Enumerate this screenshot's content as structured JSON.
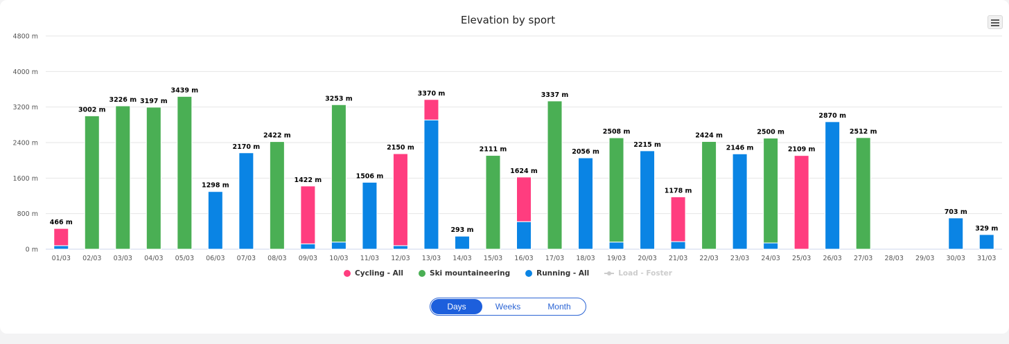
{
  "chart_data": {
    "type": "bar",
    "stacked": true,
    "title": "Elevation by sport",
    "y_unit": "m",
    "ylim": [
      0,
      4800
    ],
    "y_ticks": [
      0,
      800,
      1600,
      2400,
      3200,
      4000,
      4800
    ],
    "y_tick_labels": [
      "0 m",
      "800 m",
      "1600 m",
      "2400 m",
      "3200 m",
      "4000 m",
      "4800 m"
    ],
    "grid": true,
    "legend_position": "bottom-center",
    "categories": [
      "01/03",
      "02/03",
      "03/03",
      "04/03",
      "05/03",
      "06/03",
      "07/03",
      "08/03",
      "09/03",
      "10/03",
      "11/03",
      "12/03",
      "13/03",
      "14/03",
      "15/03",
      "16/03",
      "17/03",
      "18/03",
      "19/03",
      "20/03",
      "21/03",
      "22/03",
      "23/03",
      "24/03",
      "25/03",
      "26/03",
      "27/03",
      "28/03",
      "29/03",
      "30/03",
      "31/03"
    ],
    "series": [
      {
        "name": "Running - All",
        "color": "#0a84e4",
        "values": [
          80,
          0,
          0,
          0,
          0,
          1298,
          2170,
          0,
          120,
          160,
          1506,
          80,
          2910,
          293,
          0,
          620,
          0,
          2056,
          160,
          2215,
          170,
          0,
          2146,
          140,
          0,
          2870,
          0,
          0,
          0,
          703,
          329
        ]
      },
      {
        "name": "Ski mountaineering",
        "color": "#4aaf54",
        "values": [
          0,
          3002,
          3226,
          3197,
          3439,
          0,
          0,
          2422,
          0,
          3093,
          0,
          0,
          0,
          0,
          2111,
          0,
          3337,
          0,
          2348,
          0,
          0,
          2424,
          0,
          2360,
          0,
          0,
          2512,
          0,
          0,
          0,
          0
        ]
      },
      {
        "name": "Cycling - All",
        "color": "#ff3d7f",
        "values": [
          386,
          0,
          0,
          0,
          0,
          0,
          0,
          0,
          1302,
          0,
          0,
          2070,
          460,
          0,
          0,
          1004,
          0,
          0,
          0,
          0,
          1008,
          0,
          0,
          0,
          2109,
          0,
          0,
          0,
          0,
          0,
          0
        ]
      }
    ],
    "totals": [
      466,
      3002,
      3226,
      3197,
      3439,
      1298,
      2170,
      2422,
      1422,
      3253,
      1506,
      2150,
      3370,
      293,
      2111,
      1624,
      3337,
      2056,
      2508,
      2215,
      1178,
      2424,
      2146,
      2500,
      2109,
      2870,
      2512,
      null,
      null,
      703,
      329
    ],
    "total_labels": [
      "466 m",
      "3002 m",
      "3226 m",
      "3197 m",
      "3439 m",
      "1298 m",
      "2170 m",
      "2422 m",
      "1422 m",
      "3253 m",
      "1506 m",
      "2150 m",
      "3370 m",
      "293 m",
      "2111 m",
      "1624 m",
      "3337 m",
      "2056 m",
      "2508 m",
      "2215 m",
      "1178 m",
      "2424 m",
      "2146 m",
      "2500 m",
      "2109 m",
      "2870 m",
      "2512 m",
      "",
      "",
      "703 m",
      "329 m"
    ]
  },
  "legend": [
    {
      "label": "Cycling - All",
      "color": "#ff3d7f",
      "marker": "dot",
      "hidden": false
    },
    {
      "label": "Ski mountaineering",
      "color": "#4aaf54",
      "marker": "dot",
      "hidden": false
    },
    {
      "label": "Running - All",
      "color": "#0a84e4",
      "marker": "dot",
      "hidden": false
    },
    {
      "label": "Load - Foster",
      "color": "#cccccc",
      "marker": "line",
      "hidden": true
    }
  ],
  "period_switch": {
    "options": [
      "Days",
      "Weeks",
      "Month"
    ],
    "selected": "Days"
  }
}
